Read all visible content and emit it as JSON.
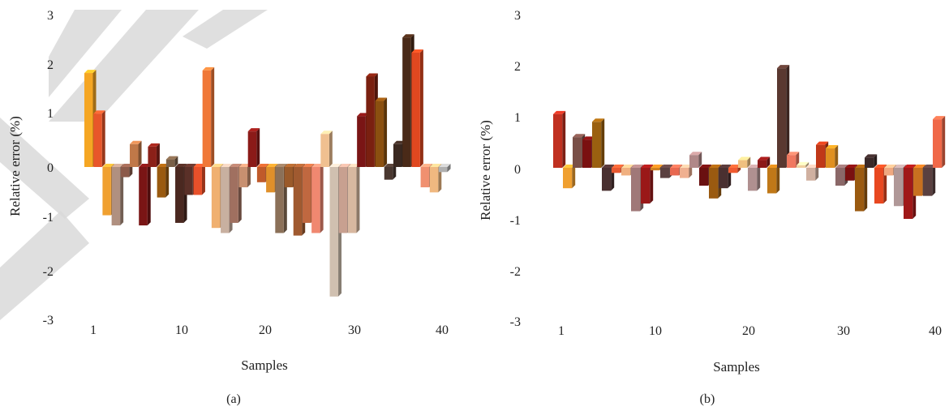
{
  "figure": {
    "watermark_color": "#d9d9d9"
  },
  "chart_data": [
    {
      "type": "bar",
      "panel_label": "(a)",
      "xlabel": "Samples",
      "ylabel": "Relative error (%)",
      "ylim": [
        -3,
        3
      ],
      "yticks": [
        "3",
        "2",
        "1",
        "0",
        "-1",
        "-2",
        "-3"
      ],
      "xticks": [
        "1",
        "10",
        "20",
        "30",
        "40"
      ],
      "x": [
        1,
        2,
        3,
        4,
        5,
        6,
        7,
        8,
        9,
        10,
        11,
        12,
        13,
        14,
        15,
        16,
        17,
        18,
        19,
        20,
        21,
        22,
        23,
        24,
        25,
        26,
        27,
        28,
        29,
        30,
        31,
        32,
        33,
        34,
        35,
        36,
        37,
        38,
        39,
        40
      ],
      "values": [
        1.85,
        1.05,
        -0.95,
        -1.15,
        -0.2,
        0.45,
        -1.15,
        0.4,
        -0.6,
        0.15,
        -1.1,
        -0.55,
        -0.55,
        1.9,
        -1.2,
        -1.3,
        -1.1,
        -0.4,
        0.7,
        -0.3,
        -0.5,
        -1.3,
        -0.4,
        -1.35,
        -1.1,
        -1.3,
        0.65,
        -2.55,
        -1.3,
        -1.3,
        1.0,
        1.78,
        1.3,
        -0.25,
        0.45,
        2.55,
        2.25,
        -0.4,
        -0.5,
        -0.1
      ],
      "colors": [
        "#f5a623",
        "#e8562a",
        "#f0a030",
        "#b09080",
        "#8b5a4a",
        "#c07848",
        "#7a1515",
        "#8b2018",
        "#9a5a10",
        "#7a6048",
        "#4a2820",
        "#5a3028",
        "#e8502a",
        "#f07838",
        "#f0b070",
        "#c8b0a0",
        "#a07060",
        "#c89070",
        "#8b1a18",
        "#c05a2a",
        "#e0902a",
        "#8b7058",
        "#9a5a2a",
        "#a05a30",
        "#c06840",
        "#f08870",
        "#f0c090",
        "#d0c0b0",
        "#c8a090",
        "#d8b8a0",
        "#7a1515",
        "#7a2010",
        "#8b5010",
        "#4a3830",
        "#3a2820",
        "#4a2a18",
        "#e04820",
        "#f09070",
        "#f0b880",
        "#b0b0b0"
      ]
    },
    {
      "type": "bar",
      "panel_label": "(b)",
      "xlabel": "Samples",
      "ylabel": "Relative error (%)",
      "ylim": [
        -3,
        3
      ],
      "yticks": [
        "3",
        "2",
        "1",
        "0",
        "-1",
        "-2",
        "-3"
      ],
      "xticks": [
        "1",
        "10",
        "20",
        "30",
        "40"
      ],
      "x": [
        1,
        2,
        3,
        4,
        5,
        6,
        7,
        8,
        9,
        10,
        11,
        12,
        13,
        14,
        15,
        16,
        17,
        18,
        19,
        20,
        21,
        22,
        23,
        24,
        25,
        26,
        27,
        28,
        29,
        30,
        31,
        32,
        33,
        34,
        35,
        36,
        37,
        38,
        39,
        40
      ],
      "values": [
        1.05,
        -0.4,
        0.6,
        0.55,
        0.9,
        -0.45,
        -0.1,
        -0.15,
        -0.85,
        -0.7,
        -0.05,
        -0.2,
        -0.15,
        -0.2,
        0.25,
        -0.35,
        -0.6,
        -0.4,
        -0.1,
        0.15,
        -0.45,
        0.15,
        -0.5,
        1.95,
        0.25,
        0.05,
        -0.25,
        0.45,
        0.38,
        -0.35,
        -0.25,
        -0.85,
        0.2,
        -0.7,
        -0.15,
        -0.75,
        -1.0,
        -0.55,
        -0.55,
        0.95
      ],
      "colors": [
        "#c03020",
        "#f0a030",
        "#7a5048",
        "#7a1010",
        "#9a6010",
        "#4a3030",
        "#e85830",
        "#f0b080",
        "#a07878",
        "#9a1818",
        "#d08020",
        "#5a4040",
        "#e86850",
        "#f0b090",
        "#b08888",
        "#6a1010",
        "#9a5a10",
        "#4a3030",
        "#f05a30",
        "#f0c080",
        "#b09090",
        "#8b1818",
        "#c07818",
        "#5a3830",
        "#f07860",
        "#f0d0a0",
        "#d0b0a0",
        "#c03818",
        "#e09020",
        "#8b6868",
        "#7a1010",
        "#9a5a10",
        "#3a2828",
        "#e84820",
        "#f0a880",
        "#b09898",
        "#a01818",
        "#c87020",
        "#5a4040",
        "#f06848"
      ]
    }
  ]
}
